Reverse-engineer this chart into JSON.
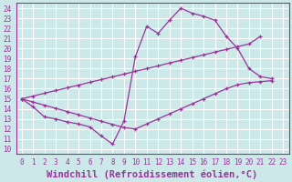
{
  "xlabel": "Windchill (Refroidissement éolien,°C)",
  "xlim": [
    -0.5,
    23.5
  ],
  "ylim": [
    9.5,
    24.5
  ],
  "xticks": [
    0,
    1,
    2,
    3,
    4,
    5,
    6,
    7,
    8,
    9,
    10,
    11,
    12,
    13,
    14,
    15,
    16,
    17,
    18,
    19,
    20,
    21,
    22,
    23
  ],
  "yticks": [
    10,
    11,
    12,
    13,
    14,
    15,
    16,
    17,
    18,
    19,
    20,
    21,
    22,
    23,
    24
  ],
  "bg_color": "#cce8e8",
  "grid_color": "#ffffff",
  "line_color": "#993399",
  "line1_x": [
    0,
    1,
    2,
    3,
    4,
    5,
    6,
    7,
    8,
    9,
    10,
    11,
    12,
    13,
    14,
    15,
    16,
    17,
    18,
    19,
    20,
    21,
    22
  ],
  "line1_y": [
    15.0,
    14.2,
    13.2,
    13.0,
    12.7,
    12.5,
    12.2,
    11.3,
    10.5,
    12.8,
    19.2,
    22.2,
    21.5,
    22.8,
    24.0,
    23.5,
    23.2,
    22.8,
    21.2,
    20.0,
    18.0,
    17.2,
    17.0
  ],
  "line2_x": [
    0,
    1,
    2,
    3,
    4,
    5,
    6,
    7,
    8,
    9,
    10,
    11,
    12,
    13,
    14,
    15,
    16,
    17,
    18,
    19,
    20,
    21,
    22
  ],
  "line2_y": [
    15.0,
    14.68,
    14.36,
    14.05,
    13.73,
    13.41,
    13.09,
    12.77,
    12.45,
    12.14,
    12.0,
    12.5,
    13.0,
    13.5,
    14.0,
    14.5,
    15.0,
    15.5,
    16.0,
    16.4,
    16.6,
    16.7,
    16.8
  ],
  "line3_x": [
    0,
    1,
    2,
    3,
    4,
    5,
    6,
    7,
    8,
    9,
    10,
    11,
    12,
    13,
    14,
    15,
    16,
    17,
    18,
    19,
    20,
    21
  ],
  "line3_y": [
    15.0,
    15.27,
    15.55,
    15.82,
    16.09,
    16.36,
    16.64,
    16.91,
    17.18,
    17.45,
    17.73,
    18.0,
    18.27,
    18.55,
    18.82,
    19.09,
    19.36,
    19.64,
    19.91,
    20.18,
    20.45,
    21.2
  ],
  "font_family": "monospace",
  "tick_fontsize": 5.5,
  "xlabel_fontsize": 7.5
}
